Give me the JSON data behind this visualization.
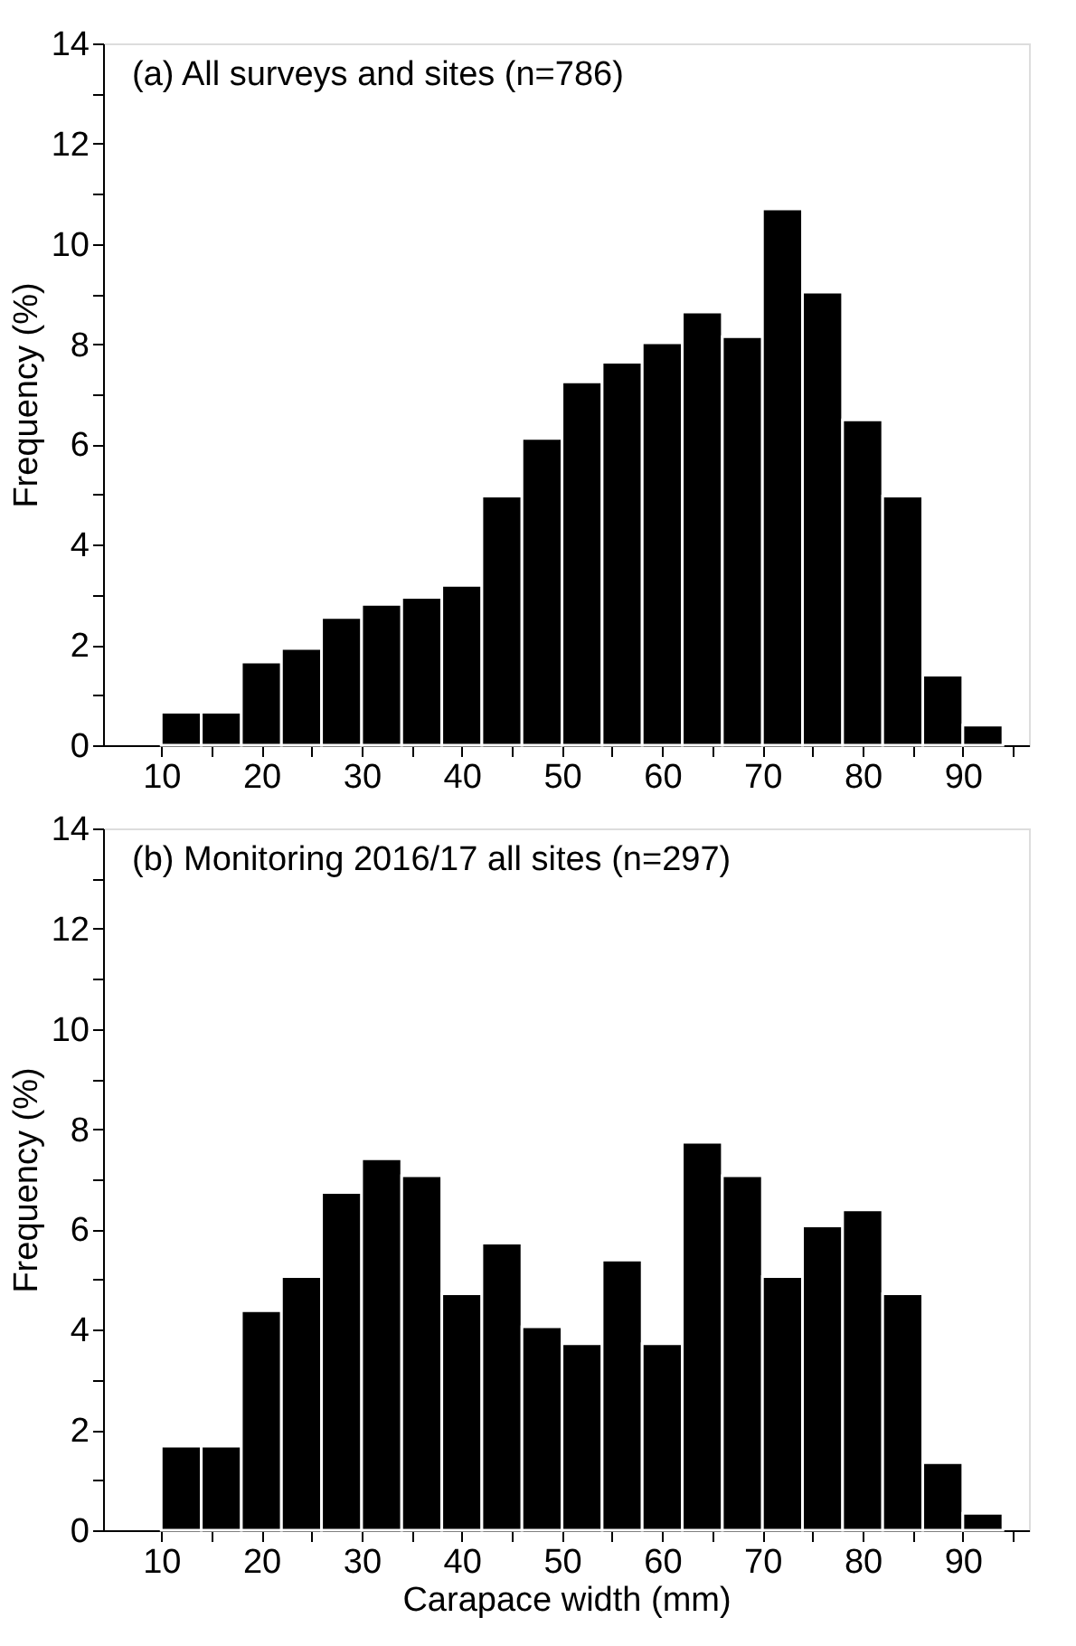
{
  "chart_data": [
    {
      "type": "histogram",
      "title": "(a) All surveys and sites (n=786)",
      "ylabel": "Frequency (%)",
      "color": "#000000",
      "bins": [
        10,
        14,
        18,
        22,
        26,
        30,
        34,
        38,
        42,
        46,
        50,
        54,
        58,
        62,
        66,
        70,
        74,
        78,
        82,
        86,
        90,
        94
      ],
      "values": [
        0.66,
        0.66,
        1.66,
        1.93,
        2.55,
        2.81,
        2.95,
        3.19,
        4.97,
        6.12,
        7.25,
        7.64,
        8.03,
        8.64,
        8.15,
        10.7,
        9.04,
        6.49,
        4.97,
        1.4,
        0.4
      ],
      "xlim": [
        4.2,
        96.6
      ],
      "xticks": [
        10,
        {
          "value": 15,
          "label": null
        },
        20,
        {
          "value": 25,
          "label": null
        },
        30,
        {
          "value": 35,
          "label": null
        },
        40,
        {
          "value": 45,
          "label": null
        },
        50,
        {
          "value": 55,
          "label": null
        },
        60,
        {
          "value": 65,
          "label": null
        },
        70,
        {
          "value": 75,
          "label": null
        },
        80,
        {
          "value": 85,
          "label": null
        },
        90,
        {
          "value": 95,
          "label": null
        }
      ],
      "ylim": [
        0,
        14
      ],
      "yticks": [
        0,
        {
          "value": 1,
          "label": null
        },
        2,
        {
          "value": 3,
          "label": null
        },
        4,
        {
          "value": 5,
          "label": null
        },
        6,
        {
          "value": 7,
          "label": null
        },
        8,
        {
          "value": 9,
          "label": null
        },
        10,
        {
          "value": 11,
          "label": null
        },
        12,
        {
          "value": 13,
          "label": null
        },
        14
      ]
    },
    {
      "type": "histogram",
      "title": "(b) Monitoring 2016/17 all sites (n=297)",
      "ylabel": "Frequency (%)",
      "xlabel": "Carapace width (mm)",
      "color": "#000000",
      "bins": [
        10,
        14,
        18,
        22,
        26,
        30,
        34,
        38,
        42,
        46,
        50,
        54,
        58,
        62,
        66,
        70,
        74,
        78,
        82,
        86,
        90,
        94
      ],
      "values": [
        1.68,
        1.68,
        4.38,
        5.06,
        6.74,
        7.41,
        7.07,
        4.72,
        5.73,
        4.06,
        3.72,
        5.39,
        3.72,
        7.74,
        7.07,
        5.06,
        6.07,
        6.39,
        4.72,
        1.35,
        0.34
      ],
      "xlim": [
        4.2,
        96.6
      ],
      "xticks": [
        10,
        {
          "value": 15,
          "label": null
        },
        20,
        {
          "value": 25,
          "label": null
        },
        30,
        {
          "value": 35,
          "label": null
        },
        40,
        {
          "value": 45,
          "label": null
        },
        50,
        {
          "value": 55,
          "label": null
        },
        60,
        {
          "value": 65,
          "label": null
        },
        70,
        {
          "value": 75,
          "label": null
        },
        80,
        {
          "value": 85,
          "label": null
        },
        90,
        {
          "value": 95,
          "label": null
        }
      ],
      "ylim": [
        0,
        14
      ],
      "yticks": [
        0,
        {
          "value": 1,
          "label": null
        },
        2,
        {
          "value": 3,
          "label": null
        },
        4,
        {
          "value": 5,
          "label": null
        },
        6,
        {
          "value": 7,
          "label": null
        },
        8,
        {
          "value": 9,
          "label": null
        },
        10,
        {
          "value": 11,
          "label": null
        },
        12,
        {
          "value": 13,
          "label": null
        },
        14
      ]
    }
  ]
}
